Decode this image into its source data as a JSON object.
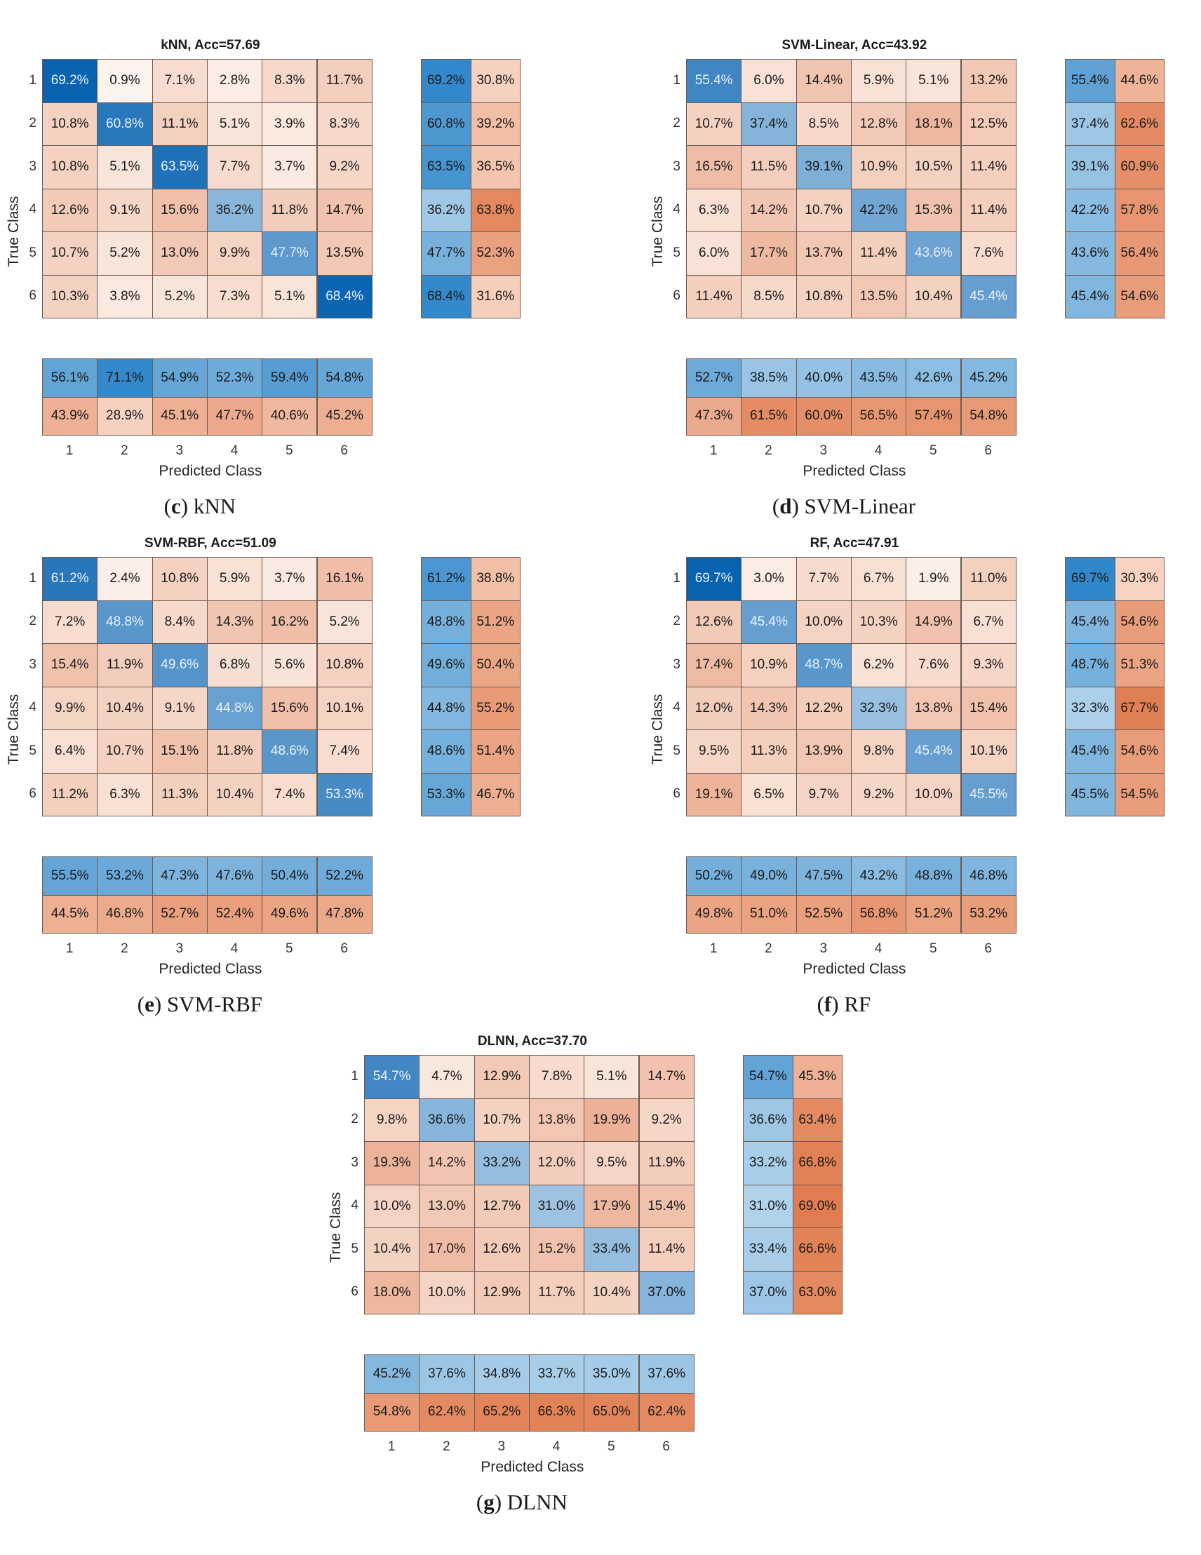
{
  "axis": {
    "xlabel": "Predicted Class",
    "ylabel": "True Class",
    "classes": [
      "1",
      "2",
      "3",
      "4",
      "5",
      "6"
    ]
  },
  "colors": {
    "blue_dark": "#0661b0",
    "blue_light": "#dcebf6",
    "orange_dark": "#e07a4d",
    "orange_light": "#fdf6f1"
  },
  "chart_data": [
    {
      "type": "heatmap",
      "title": "kNN, Acc=57.69",
      "caption_letter": "c",
      "caption_name": "kNN",
      "matrix": [
        [
          "69.2%",
          "0.9%",
          "7.1%",
          "2.8%",
          "8.3%",
          "11.7%"
        ],
        [
          "10.8%",
          "60.8%",
          "11.1%",
          "5.1%",
          "3.9%",
          "8.3%"
        ],
        [
          "10.8%",
          "5.1%",
          "63.5%",
          "7.7%",
          "3.7%",
          "9.2%"
        ],
        [
          "12.6%",
          "9.1%",
          "15.6%",
          "36.2%",
          "11.8%",
          "14.7%"
        ],
        [
          "10.7%",
          "5.2%",
          "13.0%",
          "9.9%",
          "47.7%",
          "13.5%"
        ],
        [
          "10.3%",
          "3.8%",
          "5.2%",
          "7.3%",
          "5.1%",
          "68.4%"
        ]
      ],
      "row_summary": [
        [
          "69.2%",
          "30.8%"
        ],
        [
          "60.8%",
          "39.2%"
        ],
        [
          "63.5%",
          "36.5%"
        ],
        [
          "36.2%",
          "63.8%"
        ],
        [
          "47.7%",
          "52.3%"
        ],
        [
          "68.4%",
          "31.6%"
        ]
      ],
      "col_summary": [
        [
          "56.1%",
          "71.1%",
          "54.9%",
          "52.3%",
          "59.4%",
          "54.8%"
        ],
        [
          "43.9%",
          "28.9%",
          "45.1%",
          "47.7%",
          "40.6%",
          "45.2%"
        ]
      ]
    },
    {
      "type": "heatmap",
      "title": "SVM-Linear, Acc=43.92",
      "caption_letter": "d",
      "caption_name": "SVM-Linear",
      "matrix": [
        [
          "55.4%",
          "6.0%",
          "14.4%",
          "5.9%",
          "5.1%",
          "13.2%"
        ],
        [
          "10.7%",
          "37.4%",
          "8.5%",
          "12.8%",
          "18.1%",
          "12.5%"
        ],
        [
          "16.5%",
          "11.5%",
          "39.1%",
          "10.9%",
          "10.5%",
          "11.4%"
        ],
        [
          "6.3%",
          "14.2%",
          "10.7%",
          "42.2%",
          "15.3%",
          "11.4%"
        ],
        [
          "6.0%",
          "17.7%",
          "13.7%",
          "11.4%",
          "43.6%",
          "7.6%"
        ],
        [
          "11.4%",
          "8.5%",
          "10.8%",
          "13.5%",
          "10.4%",
          "45.4%"
        ]
      ],
      "row_summary": [
        [
          "55.4%",
          "44.6%"
        ],
        [
          "37.4%",
          "62.6%"
        ],
        [
          "39.1%",
          "60.9%"
        ],
        [
          "42.2%",
          "57.8%"
        ],
        [
          "43.6%",
          "56.4%"
        ],
        [
          "45.4%",
          "54.6%"
        ]
      ],
      "col_summary": [
        [
          "52.7%",
          "38.5%",
          "40.0%",
          "43.5%",
          "42.6%",
          "45.2%"
        ],
        [
          "47.3%",
          "61.5%",
          "60.0%",
          "56.5%",
          "57.4%",
          "54.8%"
        ]
      ]
    },
    {
      "type": "heatmap",
      "title": "SVM-RBF, Acc=51.09",
      "caption_letter": "e",
      "caption_name": "SVM-RBF",
      "matrix": [
        [
          "61.2%",
          "2.4%",
          "10.8%",
          "5.9%",
          "3.7%",
          "16.1%"
        ],
        [
          "7.2%",
          "48.8%",
          "8.4%",
          "14.3%",
          "16.2%",
          "5.2%"
        ],
        [
          "15.4%",
          "11.9%",
          "49.6%",
          "6.8%",
          "5.6%",
          "10.8%"
        ],
        [
          "9.9%",
          "10.4%",
          "9.1%",
          "44.8%",
          "15.6%",
          "10.1%"
        ],
        [
          "6.4%",
          "10.7%",
          "15.1%",
          "11.8%",
          "48.6%",
          "7.4%"
        ],
        [
          "11.2%",
          "6.3%",
          "11.3%",
          "10.4%",
          "7.4%",
          "53.3%"
        ]
      ],
      "row_summary": [
        [
          "61.2%",
          "38.8%"
        ],
        [
          "48.8%",
          "51.2%"
        ],
        [
          "49.6%",
          "50.4%"
        ],
        [
          "44.8%",
          "55.2%"
        ],
        [
          "48.6%",
          "51.4%"
        ],
        [
          "53.3%",
          "46.7%"
        ]
      ],
      "col_summary": [
        [
          "55.5%",
          "53.2%",
          "47.3%",
          "47.6%",
          "50.4%",
          "52.2%"
        ],
        [
          "44.5%",
          "46.8%",
          "52.7%",
          "52.4%",
          "49.6%",
          "47.8%"
        ]
      ]
    },
    {
      "type": "heatmap",
      "title": "RF, Acc=47.91",
      "caption_letter": "f",
      "caption_name": "RF",
      "matrix": [
        [
          "69.7%",
          "3.0%",
          "7.7%",
          "6.7%",
          "1.9%",
          "11.0%"
        ],
        [
          "12.6%",
          "45.4%",
          "10.0%",
          "10.3%",
          "14.9%",
          "6.7%"
        ],
        [
          "17.4%",
          "10.9%",
          "48.7%",
          "6.2%",
          "7.6%",
          "9.3%"
        ],
        [
          "12.0%",
          "14.3%",
          "12.2%",
          "32.3%",
          "13.8%",
          "15.4%"
        ],
        [
          "9.5%",
          "11.3%",
          "13.9%",
          "9.8%",
          "45.4%",
          "10.1%"
        ],
        [
          "19.1%",
          "6.5%",
          "9.7%",
          "9.2%",
          "10.0%",
          "45.5%"
        ]
      ],
      "row_summary": [
        [
          "69.7%",
          "30.3%"
        ],
        [
          "45.4%",
          "54.6%"
        ],
        [
          "48.7%",
          "51.3%"
        ],
        [
          "32.3%",
          "67.7%"
        ],
        [
          "45.4%",
          "54.6%"
        ],
        [
          "45.5%",
          "54.5%"
        ]
      ],
      "col_summary": [
        [
          "50.2%",
          "49.0%",
          "47.5%",
          "43.2%",
          "48.8%",
          "46.8%"
        ],
        [
          "49.8%",
          "51.0%",
          "52.5%",
          "56.8%",
          "51.2%",
          "53.2%"
        ]
      ]
    },
    {
      "type": "heatmap",
      "title": "DLNN, Acc=37.70",
      "caption_letter": "g",
      "caption_name": "DLNN",
      "matrix": [
        [
          "54.7%",
          "4.7%",
          "12.9%",
          "7.8%",
          "5.1%",
          "14.7%"
        ],
        [
          "9.8%",
          "36.6%",
          "10.7%",
          "13.8%",
          "19.9%",
          "9.2%"
        ],
        [
          "19.3%",
          "14.2%",
          "33.2%",
          "12.0%",
          "9.5%",
          "11.9%"
        ],
        [
          "10.0%",
          "13.0%",
          "12.7%",
          "31.0%",
          "17.9%",
          "15.4%"
        ],
        [
          "10.4%",
          "17.0%",
          "12.6%",
          "15.2%",
          "33.4%",
          "11.4%"
        ],
        [
          "18.0%",
          "10.0%",
          "12.9%",
          "11.7%",
          "10.4%",
          "37.0%"
        ]
      ],
      "row_summary": [
        [
          "54.7%",
          "45.3%"
        ],
        [
          "36.6%",
          "63.4%"
        ],
        [
          "33.2%",
          "66.8%"
        ],
        [
          "31.0%",
          "69.0%"
        ],
        [
          "33.4%",
          "66.6%"
        ],
        [
          "37.0%",
          "63.0%"
        ]
      ],
      "col_summary": [
        [
          "45.2%",
          "37.6%",
          "34.8%",
          "33.7%",
          "35.0%",
          "37.6%"
        ],
        [
          "54.8%",
          "62.4%",
          "65.2%",
          "66.3%",
          "65.0%",
          "62.4%"
        ]
      ]
    }
  ]
}
